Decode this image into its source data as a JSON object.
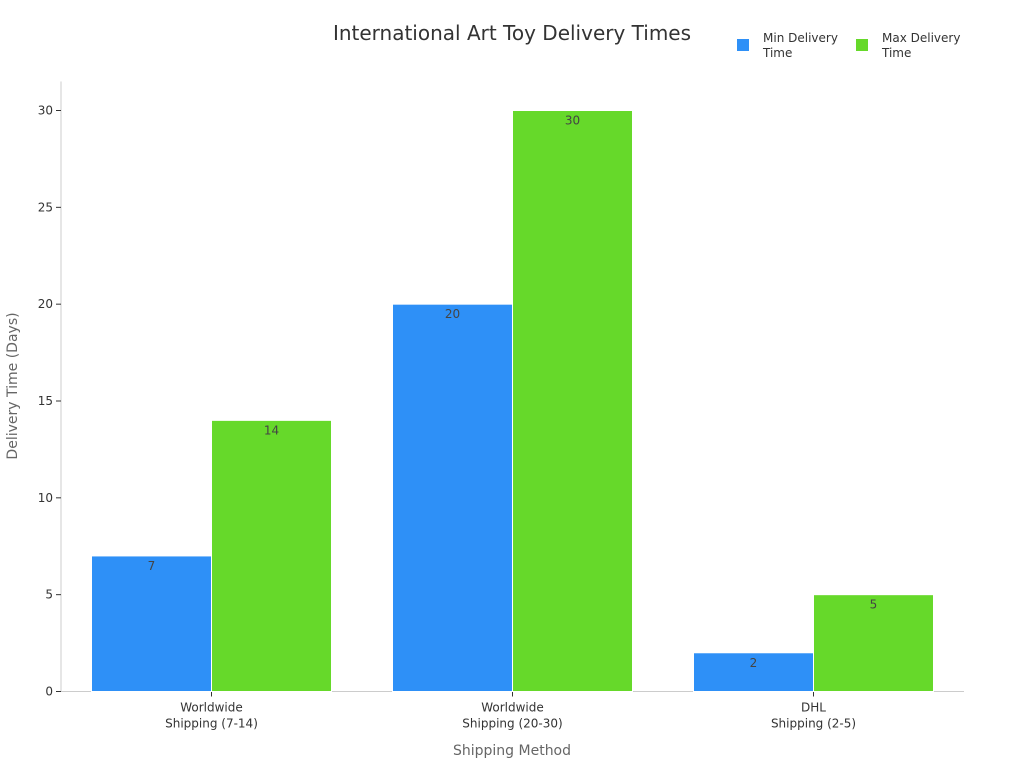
{
  "chart_data": {
    "type": "bar",
    "title": "International Art Toy Delivery Times",
    "xlabel": "Shipping Method",
    "ylabel": "Delivery Time (Days)",
    "ylim": [
      0,
      31.5
    ],
    "yticks": [
      0,
      5,
      10,
      15,
      20,
      25,
      30
    ],
    "categories": [
      [
        "Worldwide",
        "Shipping (7-14)"
      ],
      [
        "Worldwide",
        "Shipping (20-30)"
      ],
      [
        "DHL",
        "Shipping (2-5)"
      ]
    ],
    "series": [
      {
        "name": [
          "Min Delivery",
          "Time"
        ],
        "color": "#2e90f7",
        "values": [
          7,
          20,
          2
        ]
      },
      {
        "name": [
          "Max Delivery",
          "Time"
        ],
        "color": "#66d92a",
        "values": [
          14,
          30,
          5
        ]
      }
    ],
    "grid": false,
    "legend": "top-right"
  }
}
